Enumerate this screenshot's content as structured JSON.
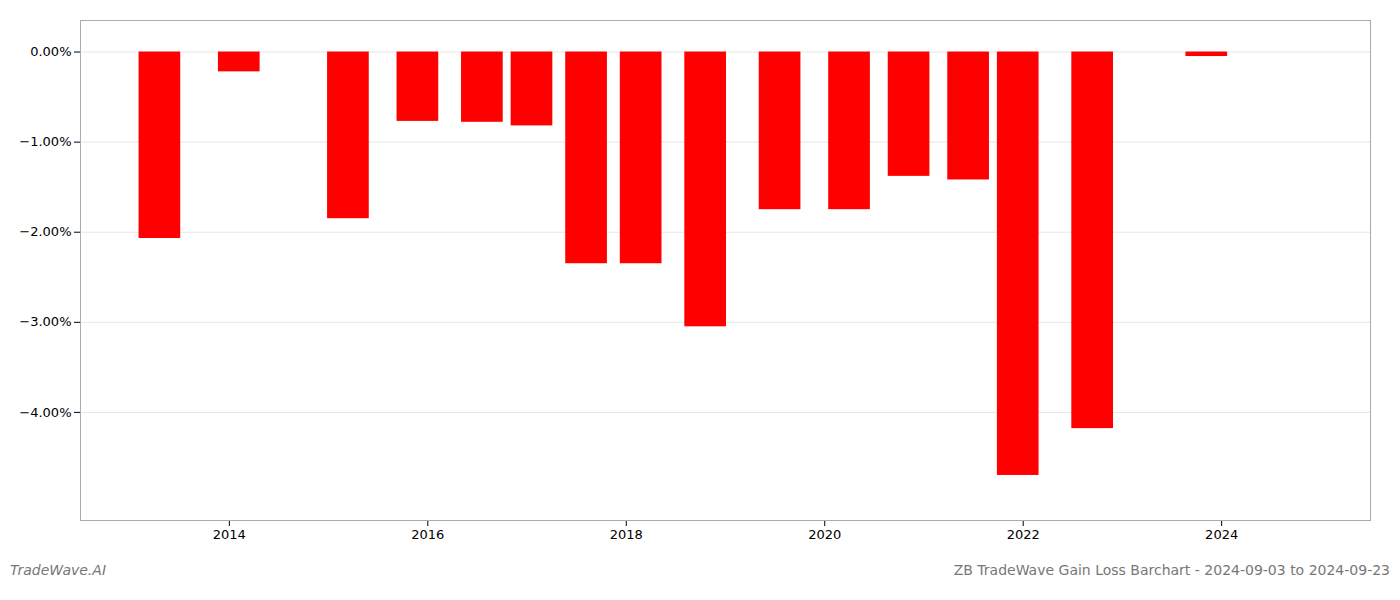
{
  "chart_data": {
    "type": "bar",
    "x": [
      2013.3,
      2014.1,
      2015.2,
      2015.9,
      2016.55,
      2017.05,
      2017.6,
      2018.15,
      2018.8,
      2019.55,
      2020.25,
      2020.85,
      2021.45,
      2021.95,
      2022.7,
      2023.85
    ],
    "values": [
      -2.07,
      -0.22,
      -1.85,
      -0.77,
      -0.78,
      -0.82,
      -2.35,
      -2.35,
      -3.05,
      -1.75,
      -1.75,
      -1.38,
      -1.42,
      -4.7,
      -4.18,
      -0.05
    ],
    "color": "#ff0000",
    "xlim": [
      2012.5,
      2025.5
    ],
    "xticks": [
      2014,
      2016,
      2018,
      2020,
      2022,
      2024
    ],
    "ylim": [
      -5.2,
      0.35
    ],
    "yticks": [
      {
        "value": 0.0,
        "label": "0.00%"
      },
      {
        "value": -1.0,
        "label": "−1.00%"
      },
      {
        "value": -2.0,
        "label": "−2.00%"
      },
      {
        "value": -3.0,
        "label": "−3.00%"
      },
      {
        "value": -4.0,
        "label": "−4.00%"
      }
    ],
    "grid": true,
    "annotations": [
      "TradeWave.AI",
      "ZB TradeWave Gain Loss Barchart - 2024-09-03 to 2024-09-23"
    ]
  }
}
